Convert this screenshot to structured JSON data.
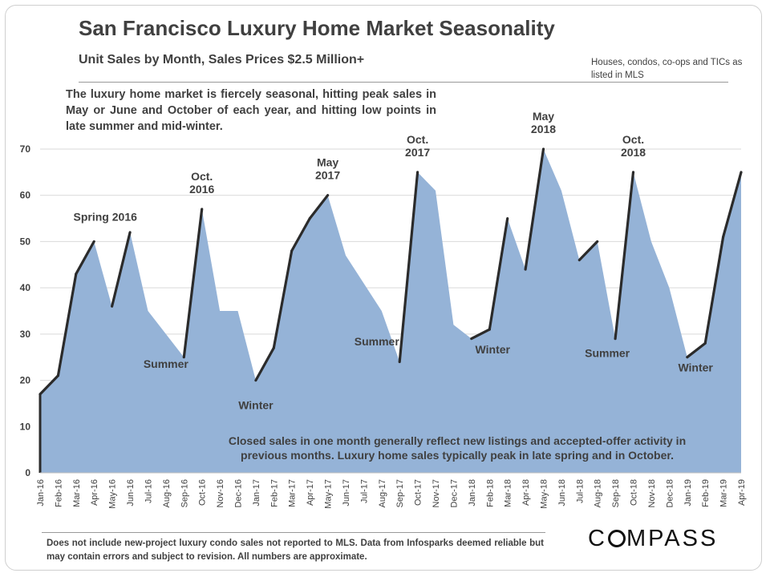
{
  "title": "San Francisco Luxury Home Market Seasonality",
  "subtitle": "Unit Sales by Month, Sales Prices $2.5 Million+",
  "note_right": "Houses, condos, co-ops and TICs as listed in MLS",
  "description": "The luxury home market is fiercely seasonal, hitting peak sales in May or June and October of each year, and hitting low points in late summer and mid-winter.",
  "inner_note": "Closed sales in one month generally reflect new listings and accepted-offer activity in previous months. Luxury home sales typically peak in late spring and in October.",
  "footnote": "Does not include new-project luxury condo sales not reported to MLS. Data from Infosparks deemed reliable but may contain errors and subject to revision.  All numbers are approximate.",
  "brand": "COMPASS",
  "colors": {
    "area": "#95b3d7",
    "edge": "#2b2b2b",
    "grid": "#d9d9d9"
  },
  "chart_data": {
    "type": "area",
    "title": "San Francisco Luxury Home Market Seasonality",
    "ylim": [
      0,
      70
    ],
    "yticks": [
      0,
      10,
      20,
      30,
      40,
      50,
      60,
      70
    ],
    "grid": true,
    "x": [
      "Jan-16",
      "Feb-16",
      "Mar-16",
      "Apr-16",
      "May-16",
      "Jun-16",
      "Jul-16",
      "Aug-16",
      "Sep-16",
      "Oct-16",
      "Nov-16",
      "Dec-16",
      "Jan-17",
      "Feb-17",
      "Mar-17",
      "Apr-17",
      "May-17",
      "Jun-17",
      "Jul-17",
      "Aug-17",
      "Sep-17",
      "Oct-17",
      "Nov-17",
      "Dec-17",
      "Jan-18",
      "Feb-18",
      "Mar-18",
      "Apr-18",
      "May-18",
      "Jun-18",
      "Jul-18",
      "Aug-18",
      "Sep-18",
      "Oct-18",
      "Nov-18",
      "Dec-18",
      "Jan-19",
      "Feb-19",
      "Mar-19",
      "Apr-19"
    ],
    "values": [
      17,
      21,
      43,
      50,
      36,
      52,
      35,
      30,
      25,
      57,
      35,
      35,
      20,
      27,
      48,
      55,
      60,
      47,
      41,
      35,
      24,
      65,
      61,
      32,
      29,
      31,
      55,
      44,
      70,
      61,
      46,
      50,
      29,
      65,
      50,
      40,
      25,
      28,
      51,
      65
    ],
    "annotations": [
      {
        "text": "Spring 2016",
        "x": "Apr-16"
      },
      {
        "text": "Oct. 2016",
        "x": "Oct-16"
      },
      {
        "text": "Summer",
        "x": "Aug-16"
      },
      {
        "text": "Winter",
        "x": "Jan-17"
      },
      {
        "text": "May 2017",
        "x": "May-17"
      },
      {
        "text": "Summer",
        "x": "Aug-17"
      },
      {
        "text": "Oct. 2017",
        "x": "Oct-17"
      },
      {
        "text": "Winter",
        "x": "Feb-18"
      },
      {
        "text": "May 2018",
        "x": "May-18"
      },
      {
        "text": "Summer",
        "x": "Sep-18"
      },
      {
        "text": "Oct. 2018",
        "x": "Oct-18"
      },
      {
        "text": "Winter",
        "x": "Feb-19"
      }
    ]
  }
}
